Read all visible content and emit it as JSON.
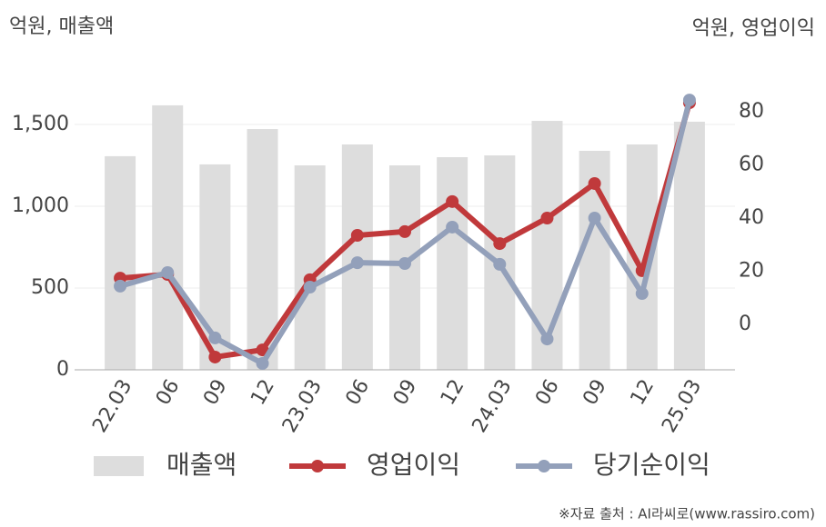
{
  "chart_data": {
    "type": "bar",
    "y_label": "억원, 매출액",
    "y2_label": "억원, 영업이익",
    "source": "※자료 출처 : AI라씨로(www.rassiro.com)",
    "categories": [
      "22.03",
      "06",
      "09",
      "12",
      "23.03",
      "06",
      "09",
      "12",
      "24.03",
      "06",
      "09",
      "12",
      "25.03"
    ],
    "series": [
      {
        "name": "매출액",
        "type": "bar",
        "color": "#dddddd",
        "axis": "y",
        "values": [
          1306,
          1617,
          1256,
          1472,
          1250,
          1378,
          1250,
          1300,
          1311,
          1522,
          1339,
          1378,
          1517
        ]
      },
      {
        "name": "영업이익",
        "type": "line",
        "color": "#c0393b",
        "axis": "y2",
        "values": [
          17.4,
          18.8,
          -12.3,
          -9.6,
          16.8,
          33.5,
          34.9,
          46.2,
          30.4,
          40,
          53,
          20.2,
          83.4
        ]
      },
      {
        "name": "당기순이익",
        "type": "line",
        "color": "#93a0ba",
        "axis": "y2",
        "values": [
          14.4,
          19.5,
          -5.1,
          -14.7,
          14,
          23.2,
          22.9,
          36.6,
          22.6,
          -5.5,
          40,
          11.6,
          84.4
        ]
      }
    ],
    "ylim": [
      0,
      1750
    ],
    "yticks": [
      0,
      500,
      {
        "value": 1000,
        "label": "1,000"
      },
      {
        "value": 1500,
        "label": "1,500"
      }
    ],
    "y2lim": [
      -17.1,
      90.6
    ],
    "y2ticks": [
      0,
      20,
      40,
      60,
      80
    ],
    "grid": true
  }
}
